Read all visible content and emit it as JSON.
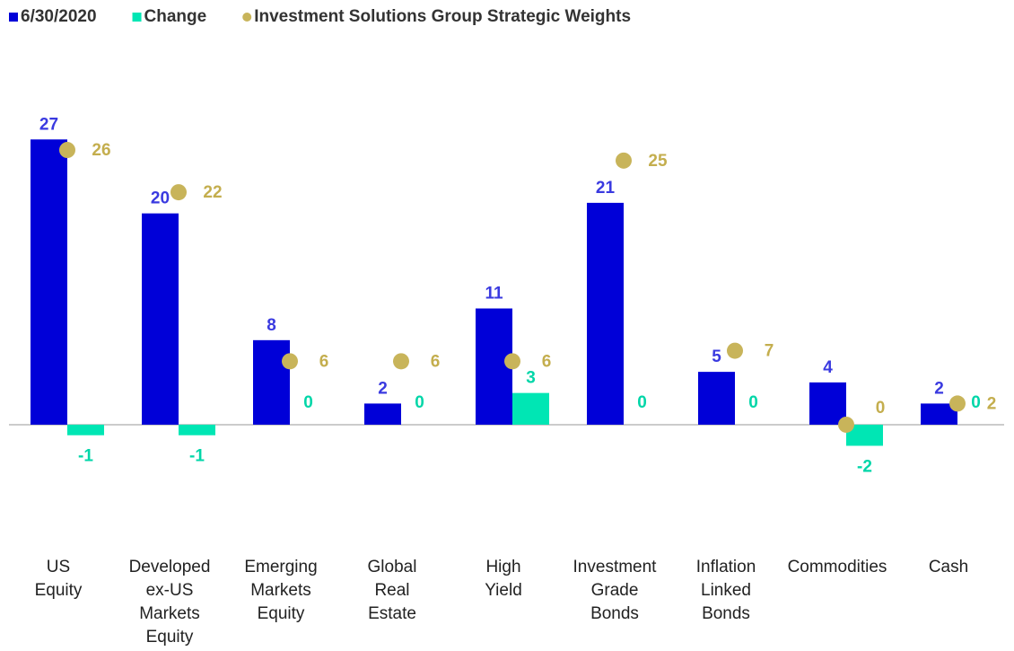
{
  "chart_data": {
    "type": "bar",
    "categories": [
      "US Equity",
      "Developed ex-US Markets Equity",
      "Emerging Markets Equity",
      "Global Real Estate",
      "High Yield",
      "Investment Grade Bonds",
      "Inflation Linked Bonds",
      "Commodities",
      "Cash"
    ],
    "series": [
      {
        "name": "6/30/2020",
        "color": "#0000d8",
        "label_color": "#3a3ae0",
        "values": [
          27,
          20,
          8,
          2,
          11,
          21,
          5,
          4,
          2
        ]
      },
      {
        "name": "Change",
        "color": "#00e6b4",
        "label_color": "#00d6a8",
        "values": [
          -1,
          -1,
          0,
          0,
          3,
          0,
          0,
          -2,
          0
        ]
      },
      {
        "name": "Investment Solutions Group Strategic Weights",
        "type": "scatter",
        "color": "#c8b45a",
        "label_color": "#c4ae4e",
        "values": [
          26,
          22,
          6,
          6,
          6,
          25,
          7,
          0,
          2
        ]
      }
    ],
    "ylim": [
      -4,
      30
    ]
  }
}
